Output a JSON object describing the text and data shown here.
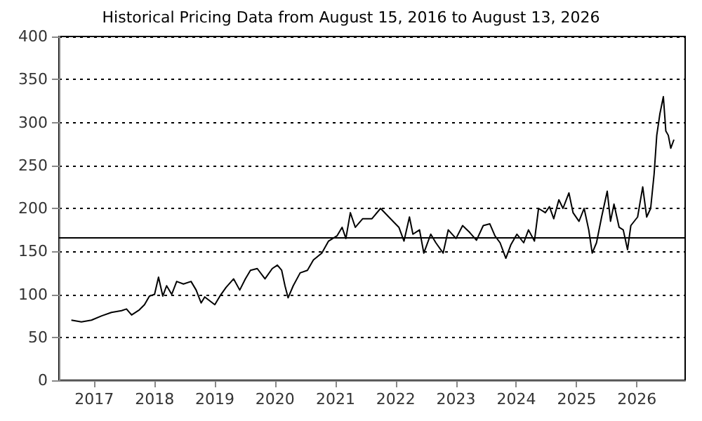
{
  "chart_data": {
    "type": "line",
    "title": "Historical Pricing Data from August 15, 2016 to August 13, 2026",
    "x": [
      "2016-08-15",
      "2016-10-15",
      "2016-12-15",
      "2017-02-15",
      "2017-04-15",
      "2017-06-15",
      "2017-07-15",
      "2017-08-15",
      "2017-10-01",
      "2017-11-01",
      "2017-12-01",
      "2018-01-01",
      "2018-01-25",
      "2018-02-20",
      "2018-03-15",
      "2018-04-15",
      "2018-05-15",
      "2018-06-25",
      "2018-08-10",
      "2018-09-10",
      "2018-10-10",
      "2018-11-01",
      "2019-01-01",
      "2019-02-01",
      "2019-03-10",
      "2019-04-25",
      "2019-06-01",
      "2019-07-05",
      "2019-08-05",
      "2019-09-15",
      "2019-11-01",
      "2019-12-15",
      "2020-01-15",
      "2020-02-10",
      "2020-03-01",
      "2020-03-20",
      "2020-04-20",
      "2020-06-01",
      "2020-07-15",
      "2020-08-20",
      "2020-10-10",
      "2020-11-20",
      "2021-01-10",
      "2021-02-10",
      "2021-03-05",
      "2021-04-01",
      "2021-05-01",
      "2021-06-15",
      "2021-08-10",
      "2021-10-01",
      "2021-11-20",
      "2022-01-20",
      "2022-02-20",
      "2022-03-25",
      "2022-04-15",
      "2022-05-25",
      "2022-06-20",
      "2022-08-01",
      "2022-09-01",
      "2022-10-15",
      "2022-11-15",
      "2023-01-01",
      "2023-02-10",
      "2023-03-25",
      "2023-05-05",
      "2023-06-15",
      "2023-07-25",
      "2023-08-25",
      "2023-09-25",
      "2023-10-30",
      "2023-11-30",
      "2024-01-05",
      "2024-02-15",
      "2024-03-15",
      "2024-04-20",
      "2024-05-15",
      "2024-06-25",
      "2024-07-20",
      "2024-08-15",
      "2024-09-15",
      "2024-10-10",
      "2024-11-15",
      "2024-12-10",
      "2025-01-15",
      "2025-02-15",
      "2025-03-15",
      "2025-04-05",
      "2025-05-01",
      "2025-06-01",
      "2025-07-05",
      "2025-07-25",
      "2025-08-15",
      "2025-09-15",
      "2025-10-10",
      "2025-11-05",
      "2025-11-25",
      "2026-01-05",
      "2026-02-05",
      "2026-03-01",
      "2026-03-25",
      "2026-04-15",
      "2026-05-01",
      "2026-05-20",
      "2026-06-10",
      "2026-06-25",
      "2026-07-10",
      "2026-07-25",
      "2026-08-13"
    ],
    "values": [
      70,
      68,
      70,
      75,
      79,
      81,
      83,
      76,
      82,
      88,
      98,
      100,
      120,
      98,
      110,
      100,
      115,
      112,
      115,
      105,
      90,
      97,
      88,
      98,
      108,
      118,
      105,
      118,
      128,
      130,
      118,
      130,
      134,
      128,
      110,
      96,
      110,
      125,
      128,
      140,
      148,
      162,
      168,
      178,
      165,
      195,
      178,
      188,
      188,
      200,
      190,
      178,
      162,
      190,
      170,
      175,
      148,
      170,
      160,
      148,
      175,
      165,
      180,
      172,
      163,
      180,
      182,
      168,
      160,
      142,
      158,
      170,
      160,
      175,
      162,
      200,
      195,
      202,
      188,
      210,
      200,
      218,
      195,
      185,
      200,
      175,
      148,
      160,
      190,
      220,
      185,
      205,
      178,
      175,
      152,
      180,
      190,
      225,
      190,
      200,
      240,
      285,
      310,
      330,
      290,
      285,
      270,
      280
    ],
    "color": "#000000",
    "xlim": [
      "2016-06-01",
      "2026-10-20"
    ],
    "xticks": [
      {
        "value": "2017-01-01",
        "label": "2017"
      },
      {
        "value": "2018-01-01",
        "label": "2018"
      },
      {
        "value": "2019-01-01",
        "label": "2019"
      },
      {
        "value": "2020-01-01",
        "label": "2020"
      },
      {
        "value": "2021-01-01",
        "label": "2021"
      },
      {
        "value": "2022-01-01",
        "label": "2022"
      },
      {
        "value": "2023-01-01",
        "label": "2023"
      },
      {
        "value": "2024-01-01",
        "label": "2024"
      },
      {
        "value": "2025-01-01",
        "label": "2025"
      },
      {
        "value": "2026-01-01",
        "label": "2026"
      }
    ],
    "ylim": [
      0,
      400
    ],
    "yticks": [
      0,
      50,
      100,
      150,
      200,
      250,
      300,
      350,
      400
    ],
    "ref_lines": [
      {
        "axis": "y",
        "value": 166,
        "color": "#000000",
        "line_style": "solid"
      }
    ],
    "grid": "y",
    "marker": "none",
    "line_style": "solid"
  }
}
